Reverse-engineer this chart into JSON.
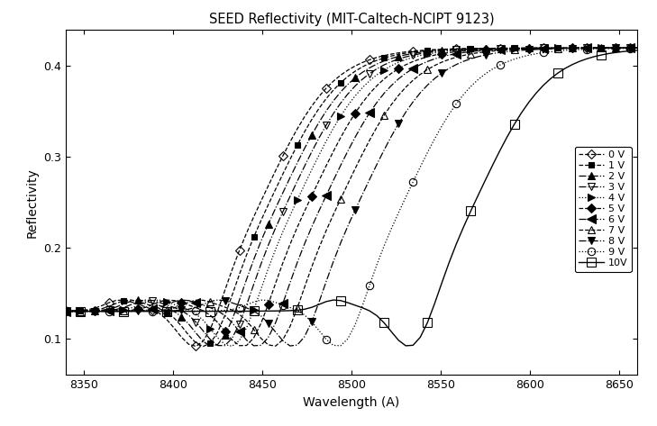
{
  "title": "SEED Reflectivity (MIT-Caltech-NCIPT 9123)",
  "xlabel": "Wavelength (A)",
  "ylabel": "Reflectivity",
  "xlim": [
    8340,
    8660
  ],
  "ylim": [
    0.06,
    0.44
  ],
  "xticks": [
    8350,
    8400,
    8450,
    8500,
    8550,
    8600,
    8650
  ],
  "yticks": [
    0.1,
    0.2,
    0.3,
    0.4
  ],
  "series": [
    {
      "label": "0 V",
      "shift": 0,
      "linestyle": "--",
      "marker": "D",
      "markersize": 5,
      "fillstyle": "none",
      "linewidth": 0.9
    },
    {
      "label": "1 V",
      "shift": 5,
      "linestyle": "--",
      "marker": "s",
      "markersize": 5,
      "fillstyle": "full",
      "linewidth": 0.9
    },
    {
      "label": "2 V",
      "shift": 10,
      "linestyle": "-.",
      "marker": "^",
      "markersize": 6,
      "fillstyle": "full",
      "linewidth": 0.9
    },
    {
      "label": "3 V",
      "shift": 15,
      "linestyle": "-.",
      "marker": "v",
      "markersize": 6,
      "fillstyle": "none",
      "linewidth": 0.9
    },
    {
      "label": "4 V",
      "shift": 20,
      "linestyle": ":",
      "marker": ">",
      "markersize": 6,
      "fillstyle": "full",
      "linewidth": 0.9
    },
    {
      "label": "5 V",
      "shift": 27,
      "linestyle": "--",
      "marker": "D",
      "markersize": 5,
      "fillstyle": "full",
      "linewidth": 0.9
    },
    {
      "label": "6 V",
      "shift": 35,
      "linestyle": "-.",
      "marker": "<",
      "markersize": 7,
      "fillstyle": "full",
      "linewidth": 0.9
    },
    {
      "label": "7 V",
      "shift": 44,
      "linestyle": "--",
      "marker": "^",
      "markersize": 6,
      "fillstyle": "none",
      "linewidth": 0.9
    },
    {
      "label": "8 V",
      "shift": 55,
      "linestyle": "-.",
      "marker": "v",
      "markersize": 6,
      "fillstyle": "full",
      "linewidth": 0.9
    },
    {
      "label": "9 V",
      "shift": 80,
      "linestyle": ":",
      "marker": "o",
      "markersize": 6,
      "fillstyle": "none",
      "linewidth": 0.9
    },
    {
      "label": "10V",
      "shift": 120,
      "linestyle": "-",
      "marker": "s",
      "markersize": 7,
      "fillstyle": "none",
      "linewidth": 1.0
    }
  ],
  "background_color": "#ffffff",
  "line_color": "#000000",
  "n_points": 80,
  "markevery": 6
}
